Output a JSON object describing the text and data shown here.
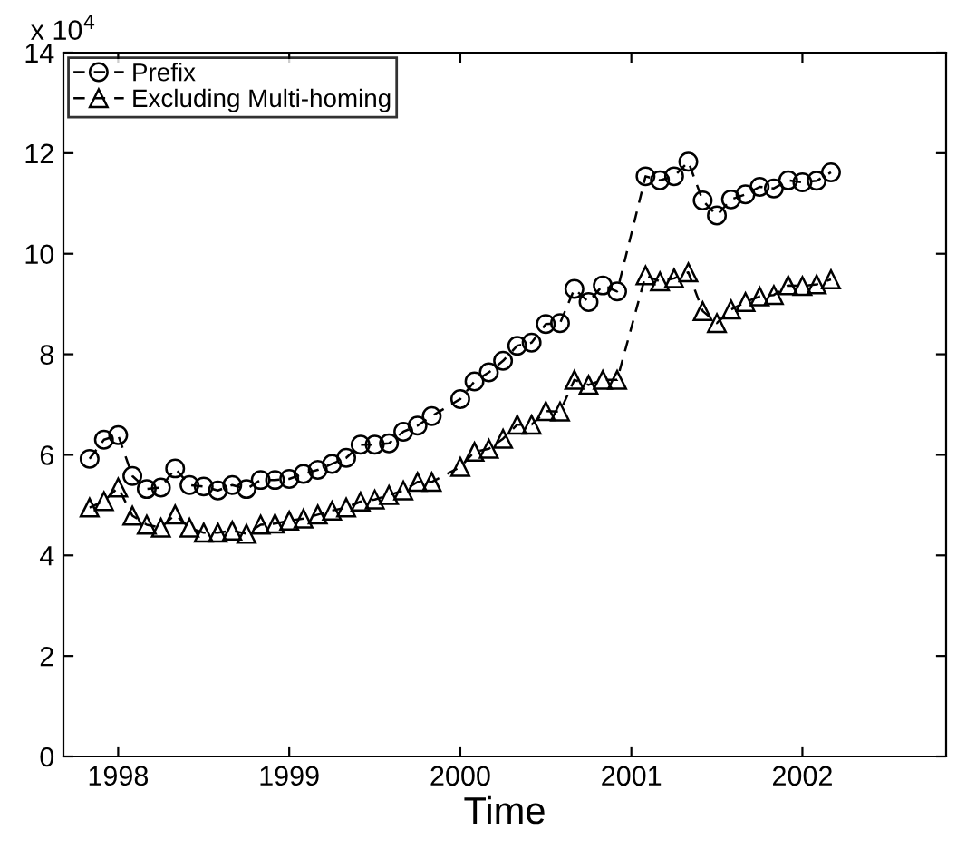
{
  "chart_data": {
    "type": "line",
    "xlabel": "Time",
    "annotations": [
      "x 10$^{4}$"
    ],
    "xlim": [
      1997.68,
      2002.84
    ],
    "xticks": [
      1998,
      1999,
      2000,
      2001,
      2002
    ],
    "ylim": [
      0,
      14
    ],
    "yticks": [
      0,
      2,
      4,
      6,
      8,
      10,
      12,
      14
    ],
    "grid": false,
    "legend": "top left",
    "line_style": "dashed",
    "x": [
      1997.833,
      1997.917,
      1998.0,
      1998.083,
      1998.167,
      1998.25,
      1998.333,
      1998.417,
      1998.5,
      1998.583,
      1998.667,
      1998.75,
      1998.833,
      1998.917,
      1999.0,
      1999.083,
      1999.167,
      1999.25,
      1999.333,
      1999.417,
      1999.5,
      1999.583,
      1999.667,
      1999.75,
      1999.833,
      2000.0,
      2000.083,
      2000.167,
      2000.25,
      2000.333,
      2000.417,
      2000.5,
      2000.583,
      2000.667,
      2000.75,
      2000.833,
      2000.917,
      2001.083,
      2001.167,
      2001.25,
      2001.333,
      2001.417,
      2001.5,
      2001.583,
      2001.667,
      2001.75,
      2001.833,
      2001.917,
      2002.0,
      2002.083,
      2002.167
    ],
    "series": [
      {
        "name": "Prefix",
        "color": "#000000",
        "marker": "circle",
        "values": [
          5.92,
          6.3,
          6.39,
          5.58,
          5.32,
          5.35,
          5.73,
          5.4,
          5.37,
          5.29,
          5.4,
          5.32,
          5.5,
          5.5,
          5.52,
          5.62,
          5.7,
          5.82,
          5.94,
          6.2,
          6.2,
          6.23,
          6.46,
          6.58,
          6.77,
          7.11,
          7.46,
          7.64,
          7.87,
          8.17,
          8.23,
          8.6,
          8.62,
          9.3,
          9.04,
          9.37,
          9.25,
          11.54,
          11.46,
          11.54,
          11.83,
          11.06,
          10.76,
          11.08,
          11.18,
          11.33,
          11.3,
          11.46,
          11.42,
          11.45,
          11.62
        ]
      },
      {
        "name": "Excluding Multi-homing",
        "color": "#000000",
        "marker": "triangle",
        "values": [
          4.95,
          5.08,
          5.35,
          4.79,
          4.61,
          4.55,
          4.81,
          4.55,
          4.45,
          4.45,
          4.49,
          4.43,
          4.61,
          4.63,
          4.69,
          4.73,
          4.81,
          4.89,
          4.95,
          5.07,
          5.11,
          5.2,
          5.29,
          5.46,
          5.46,
          5.76,
          6.06,
          6.12,
          6.32,
          6.6,
          6.6,
          6.87,
          6.86,
          7.49,
          7.39,
          7.49,
          7.49,
          9.57,
          9.45,
          9.51,
          9.63,
          8.86,
          8.62,
          8.89,
          9.04,
          9.15,
          9.18,
          9.37,
          9.36,
          9.39,
          9.49
        ]
      }
    ]
  }
}
